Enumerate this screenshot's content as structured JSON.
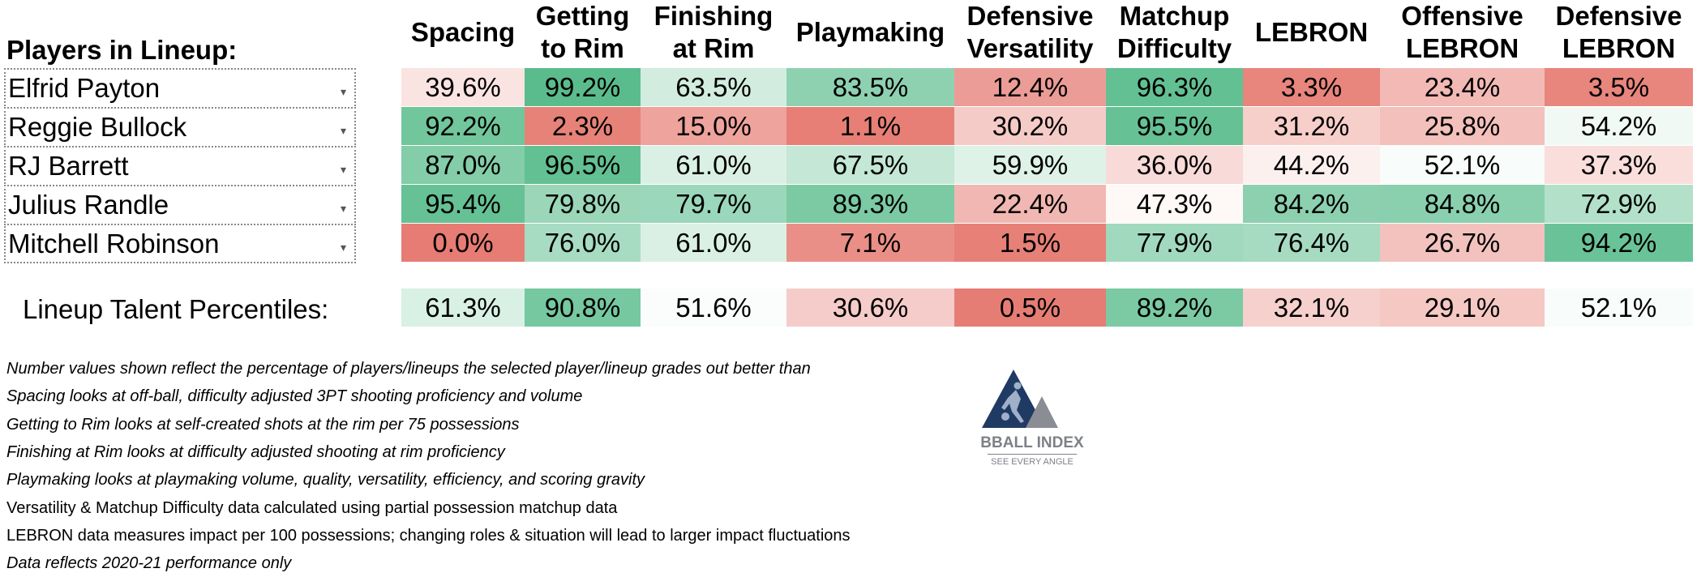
{
  "header": {
    "players_label": "Players in Lineup:"
  },
  "columns": [
    {
      "line1": "Spacing",
      "line2": ""
    },
    {
      "line1": "Getting",
      "line2": "to Rim"
    },
    {
      "line1": "Finishing",
      "line2": "at Rim"
    },
    {
      "line1": "Playmaking",
      "line2": ""
    },
    {
      "line1": "Defensive",
      "line2": "Versatility"
    },
    {
      "line1": "Matchup",
      "line2": "Difficulty"
    },
    {
      "line1": "LEBRON",
      "line2": ""
    },
    {
      "line1": "Offensive",
      "line2": "LEBRON"
    },
    {
      "line1": "Defensive",
      "line2": "LEBRON"
    }
  ],
  "players": [
    {
      "name": "Elfrid Payton",
      "values": [
        "39.6%",
        "99.2%",
        "63.5%",
        "83.5%",
        "12.4%",
        "96.3%",
        "3.3%",
        "23.4%",
        "3.5%"
      ]
    },
    {
      "name": "Reggie Bullock",
      "values": [
        "92.2%",
        "2.3%",
        "15.0%",
        "1.1%",
        "30.2%",
        "95.5%",
        "31.2%",
        "25.8%",
        "54.2%"
      ]
    },
    {
      "name": "RJ Barrett",
      "values": [
        "87.0%",
        "96.5%",
        "61.0%",
        "67.5%",
        "59.9%",
        "36.0%",
        "44.2%",
        "52.1%",
        "37.3%"
      ]
    },
    {
      "name": "Julius Randle",
      "values": [
        "95.4%",
        "79.8%",
        "79.7%",
        "89.3%",
        "22.4%",
        "47.3%",
        "84.2%",
        "84.8%",
        "72.9%"
      ]
    },
    {
      "name": "Mitchell Robinson",
      "values": [
        "0.0%",
        "76.0%",
        "61.0%",
        "7.1%",
        "1.5%",
        "77.9%",
        "76.4%",
        "26.7%",
        "94.2%"
      ]
    }
  ],
  "lineup": {
    "label": "Lineup Talent Percentiles:",
    "values": [
      "61.3%",
      "90.8%",
      "51.6%",
      "30.6%",
      "0.5%",
      "89.2%",
      "32.1%",
      "29.1%",
      "52.1%"
    ]
  },
  "notes": [
    {
      "text": "Number values shown reflect the percentage of players/lineups the selected player/lineup grades out better than",
      "italic": true
    },
    {
      "text": "Spacing looks at off-ball, difficulty adjusted 3PT shooting proficiency and volume",
      "italic": true
    },
    {
      "text": "Getting to Rim looks at self-created shots at the rim per 75 possessions",
      "italic": true
    },
    {
      "text": "Finishing at Rim looks at difficulty adjusted shooting at rim proficiency",
      "italic": true
    },
    {
      "text": "Playmaking looks at playmaking volume, quality, versatility, efficiency, and scoring gravity",
      "italic": true
    },
    {
      "text": "Versatility & Matchup Difficulty data calculated using partial possession matchup data",
      "italic": false
    },
    {
      "text": "LEBRON data measures impact per 100 possessions; changing roles & situation will lead to larger impact fluctuations",
      "italic": false
    },
    {
      "text": "Data reflects 2020-21 performance only",
      "italic": true
    }
  ],
  "logo": {
    "name": "BBALL INDEX",
    "tagline": "SEE EVERY ANGLE"
  },
  "colors": {
    "low": "#e67c73",
    "mid": "#ffffff",
    "high": "#57bb8a",
    "logo_navy": "#1f3a63",
    "logo_gray": "#8a8d93"
  },
  "icons": {
    "dropdown": "caret-down-icon"
  }
}
